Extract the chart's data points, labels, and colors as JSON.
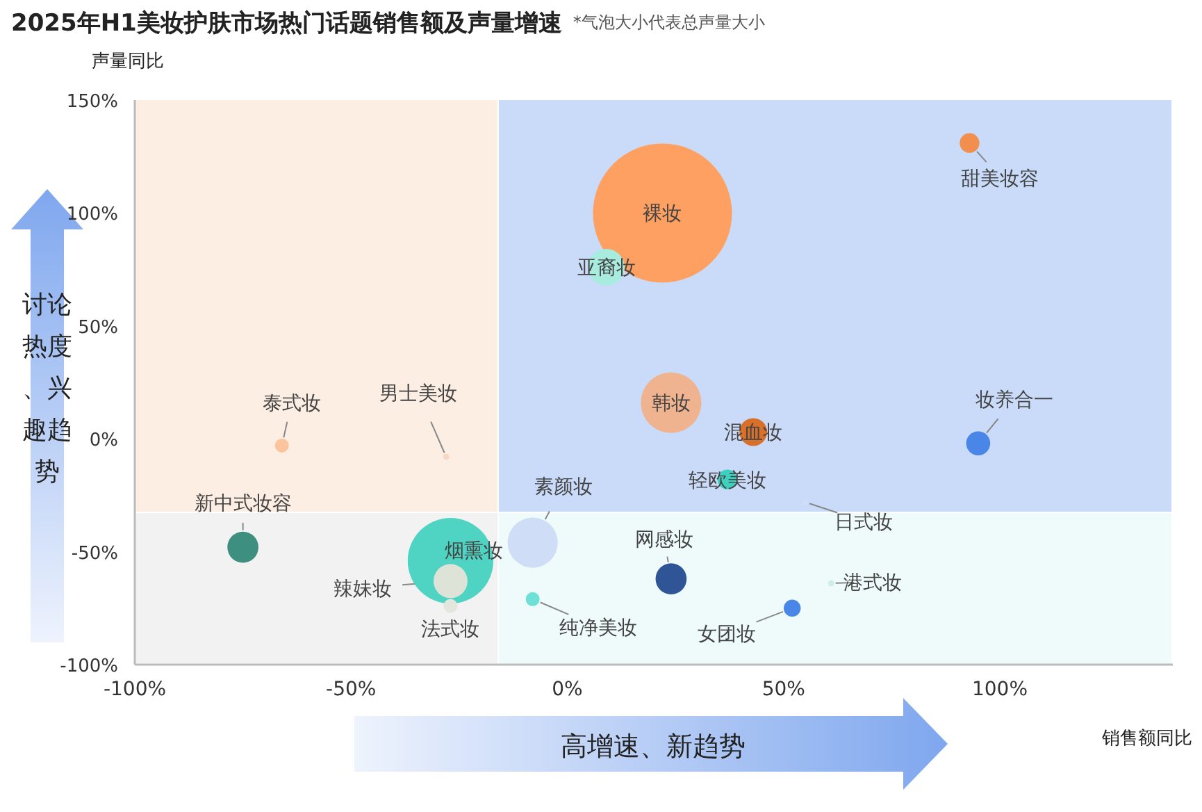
{
  "chart_data": {
    "type": "bubble",
    "title": "2025年H1美妆护肤市场热门话题销售额及声量增速",
    "subtitle": "*气泡大小代表总声量大小",
    "xlabel": "销售额同比",
    "ylabel": "声量同比",
    "annotations": [
      "讨论热度、兴趣趋势",
      "高增速、新趋势"
    ],
    "xlim": [
      -100,
      140
    ],
    "xticks": [
      {
        "value": -100,
        "label": "-100%"
      },
      {
        "value": -50,
        "label": "-50%"
      },
      {
        "value": 0,
        "label": "0%"
      },
      {
        "value": 50,
        "label": "50%"
      },
      {
        "value": 100,
        "label": "100%"
      }
    ],
    "ylim": [
      -100,
      150
    ],
    "yticks": [
      {
        "value": -100,
        "label": "-100%"
      },
      {
        "value": -50,
        "label": "-50%"
      },
      {
        "value": 0,
        "label": "0%"
      },
      {
        "value": 50,
        "label": "50%"
      },
      {
        "value": 100,
        "label": "100%"
      },
      {
        "value": 150,
        "label": "150%"
      }
    ],
    "grid": false,
    "series": [
      {
        "name": "裸妆",
        "color": "#fea061",
        "x": [
          22
        ],
        "values": [
          100
        ],
        "sizes": [
          1
        ]
      },
      {
        "name": "亚裔妆",
        "color": "#a8ecdf",
        "x": [
          9
        ],
        "values": [
          76
        ],
        "sizes": [
          0.07
        ]
      },
      {
        "name": "甜美妆容",
        "color": "#f28e4e",
        "x": [
          93
        ],
        "values": [
          131
        ],
        "sizes": [
          0.02
        ]
      },
      {
        "name": "韩妆",
        "color": "#efb48f",
        "x": [
          24
        ],
        "values": [
          16
        ],
        "sizes": [
          0.19
        ]
      },
      {
        "name": "混血妆",
        "color": "#d9702a",
        "x": [
          43
        ],
        "values": [
          3
        ],
        "sizes": [
          0.04
        ]
      },
      {
        "name": "轻欧美妆",
        "color": "#3ecfbe",
        "x": [
          37
        ],
        "values": [
          -18
        ],
        "sizes": [
          0.02
        ]
      },
      {
        "name": "妆养合一",
        "color": "#4a86e8",
        "x": [
          95
        ],
        "values": [
          -2
        ],
        "sizes": [
          0.03
        ]
      },
      {
        "name": "泰式妆",
        "color": "#fcc49c",
        "x": [
          -66
        ],
        "values": [
          -3
        ],
        "sizes": [
          0.01
        ]
      },
      {
        "name": "男士美妆",
        "color": "#f5d9c4",
        "x": [
          -28
        ],
        "values": [
          -8
        ],
        "sizes": [
          0.002
        ]
      },
      {
        "name": "日式妆",
        "color": "#d0ddf6",
        "x": [
          55
        ],
        "values": [
          -28
        ],
        "sizes": [
          0.002
        ]
      },
      {
        "name": "新中式妆容",
        "color": "#3d8f80",
        "x": [
          -75
        ],
        "values": [
          -48
        ],
        "sizes": [
          0.05
        ]
      },
      {
        "name": "烟熏妆",
        "color": "#4fd3c3",
        "x": [
          -27
        ],
        "values": [
          -54
        ],
        "sizes": [
          0.38
        ]
      },
      {
        "name": "素颜妆",
        "color": "#d0ddf6",
        "x": [
          -8
        ],
        "values": [
          -46
        ],
        "sizes": [
          0.13
        ]
      },
      {
        "name": "辣妹妆",
        "color": "#dde3d6",
        "x": [
          -27
        ],
        "values": [
          -63
        ],
        "sizes": [
          0.06
        ]
      },
      {
        "name": "法式妆",
        "color": "#e3e6dc",
        "x": [
          -27
        ],
        "values": [
          -74
        ],
        "sizes": [
          0.01
        ]
      },
      {
        "name": "纯净美妆",
        "color": "#6fe0d5",
        "x": [
          -8
        ],
        "values": [
          -71
        ],
        "sizes": [
          0.01
        ]
      },
      {
        "name": "网感妆",
        "color": "#2f5597",
        "x": [
          24
        ],
        "values": [
          -62
        ],
        "sizes": [
          0.05
        ]
      },
      {
        "name": "女团妆",
        "color": "#4a86e8",
        "x": [
          52
        ],
        "values": [
          -75
        ],
        "sizes": [
          0.015
        ]
      },
      {
        "name": "港式妆",
        "color": "#cfeee8",
        "x": [
          61
        ],
        "values": [
          -64
        ],
        "sizes": [
          0.002
        ]
      }
    ]
  }
}
